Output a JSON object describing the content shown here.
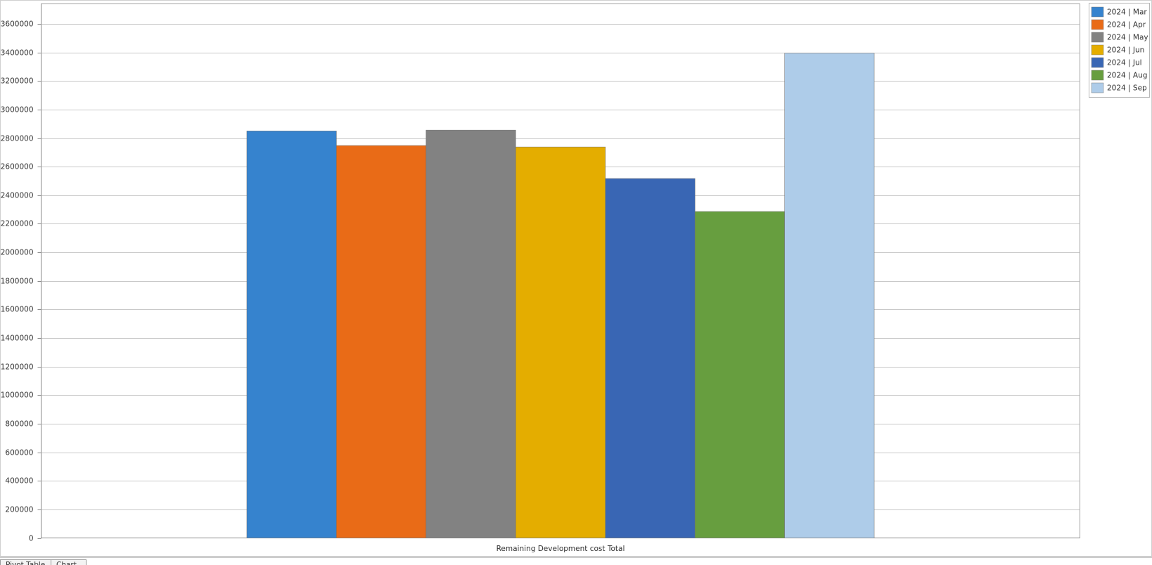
{
  "chart_data": {
    "type": "bar",
    "x_label": "Remaining Development cost Total",
    "categories": [
      "Remaining Development cost Total"
    ],
    "series": [
      {
        "name": "2024 | Mar",
        "color": "#3683ce",
        "values": [
          2850000
        ]
      },
      {
        "name": "2024 | Apr",
        "color": "#e96b17",
        "values": [
          2748000
        ]
      },
      {
        "name": "2024 | May",
        "color": "#828282",
        "values": [
          2856000
        ]
      },
      {
        "name": "2024 | Jun",
        "color": "#e4ad00",
        "values": [
          2738000
        ]
      },
      {
        "name": "2024 | Jul",
        "color": "#3966b4",
        "values": [
          2517000
        ]
      },
      {
        "name": "2024 | Aug",
        "color": "#679e3f",
        "values": [
          2286000
        ]
      },
      {
        "name": "2024 | Sep",
        "color": "#aecce9",
        "values": [
          3395000
        ]
      }
    ],
    "ylim": [
      0,
      3740000
    ],
    "yticks": [
      0,
      200000,
      400000,
      600000,
      800000,
      1000000,
      1200000,
      1400000,
      1600000,
      1800000,
      2000000,
      2200000,
      2400000,
      2600000,
      2800000,
      3000000,
      3200000,
      3400000,
      3600000
    ],
    "grid": true,
    "legend": "top-right"
  },
  "ui": {
    "tabs": [
      "Pivot Table",
      "Chart"
    ]
  }
}
